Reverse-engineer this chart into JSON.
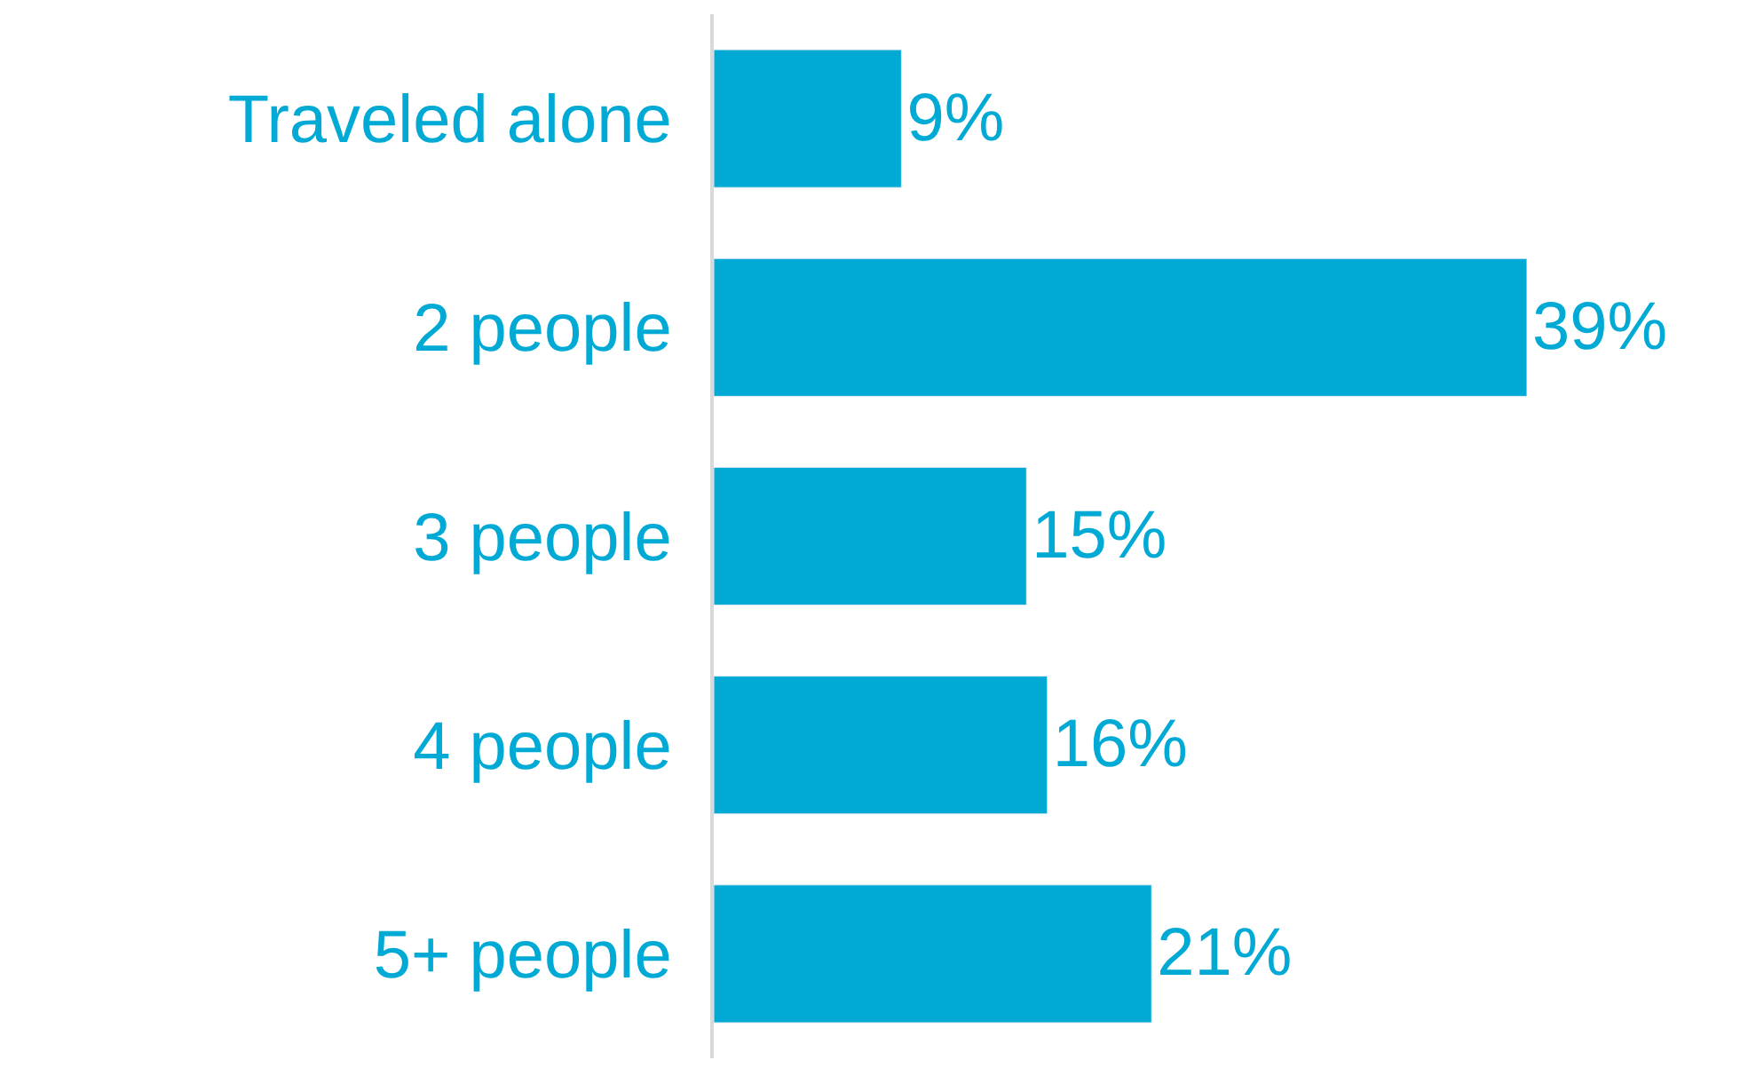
{
  "chart_data": {
    "type": "bar",
    "orientation": "horizontal",
    "categories": [
      "Traveled alone",
      "2 people",
      "3 people",
      "4 people",
      "5+ people"
    ],
    "values": [
      9,
      39,
      15,
      16,
      21
    ],
    "value_labels": [
      "9%",
      "39%",
      "15%",
      "16%",
      "21%"
    ],
    "color": "#00aad4",
    "tick_labels": "y"
  }
}
